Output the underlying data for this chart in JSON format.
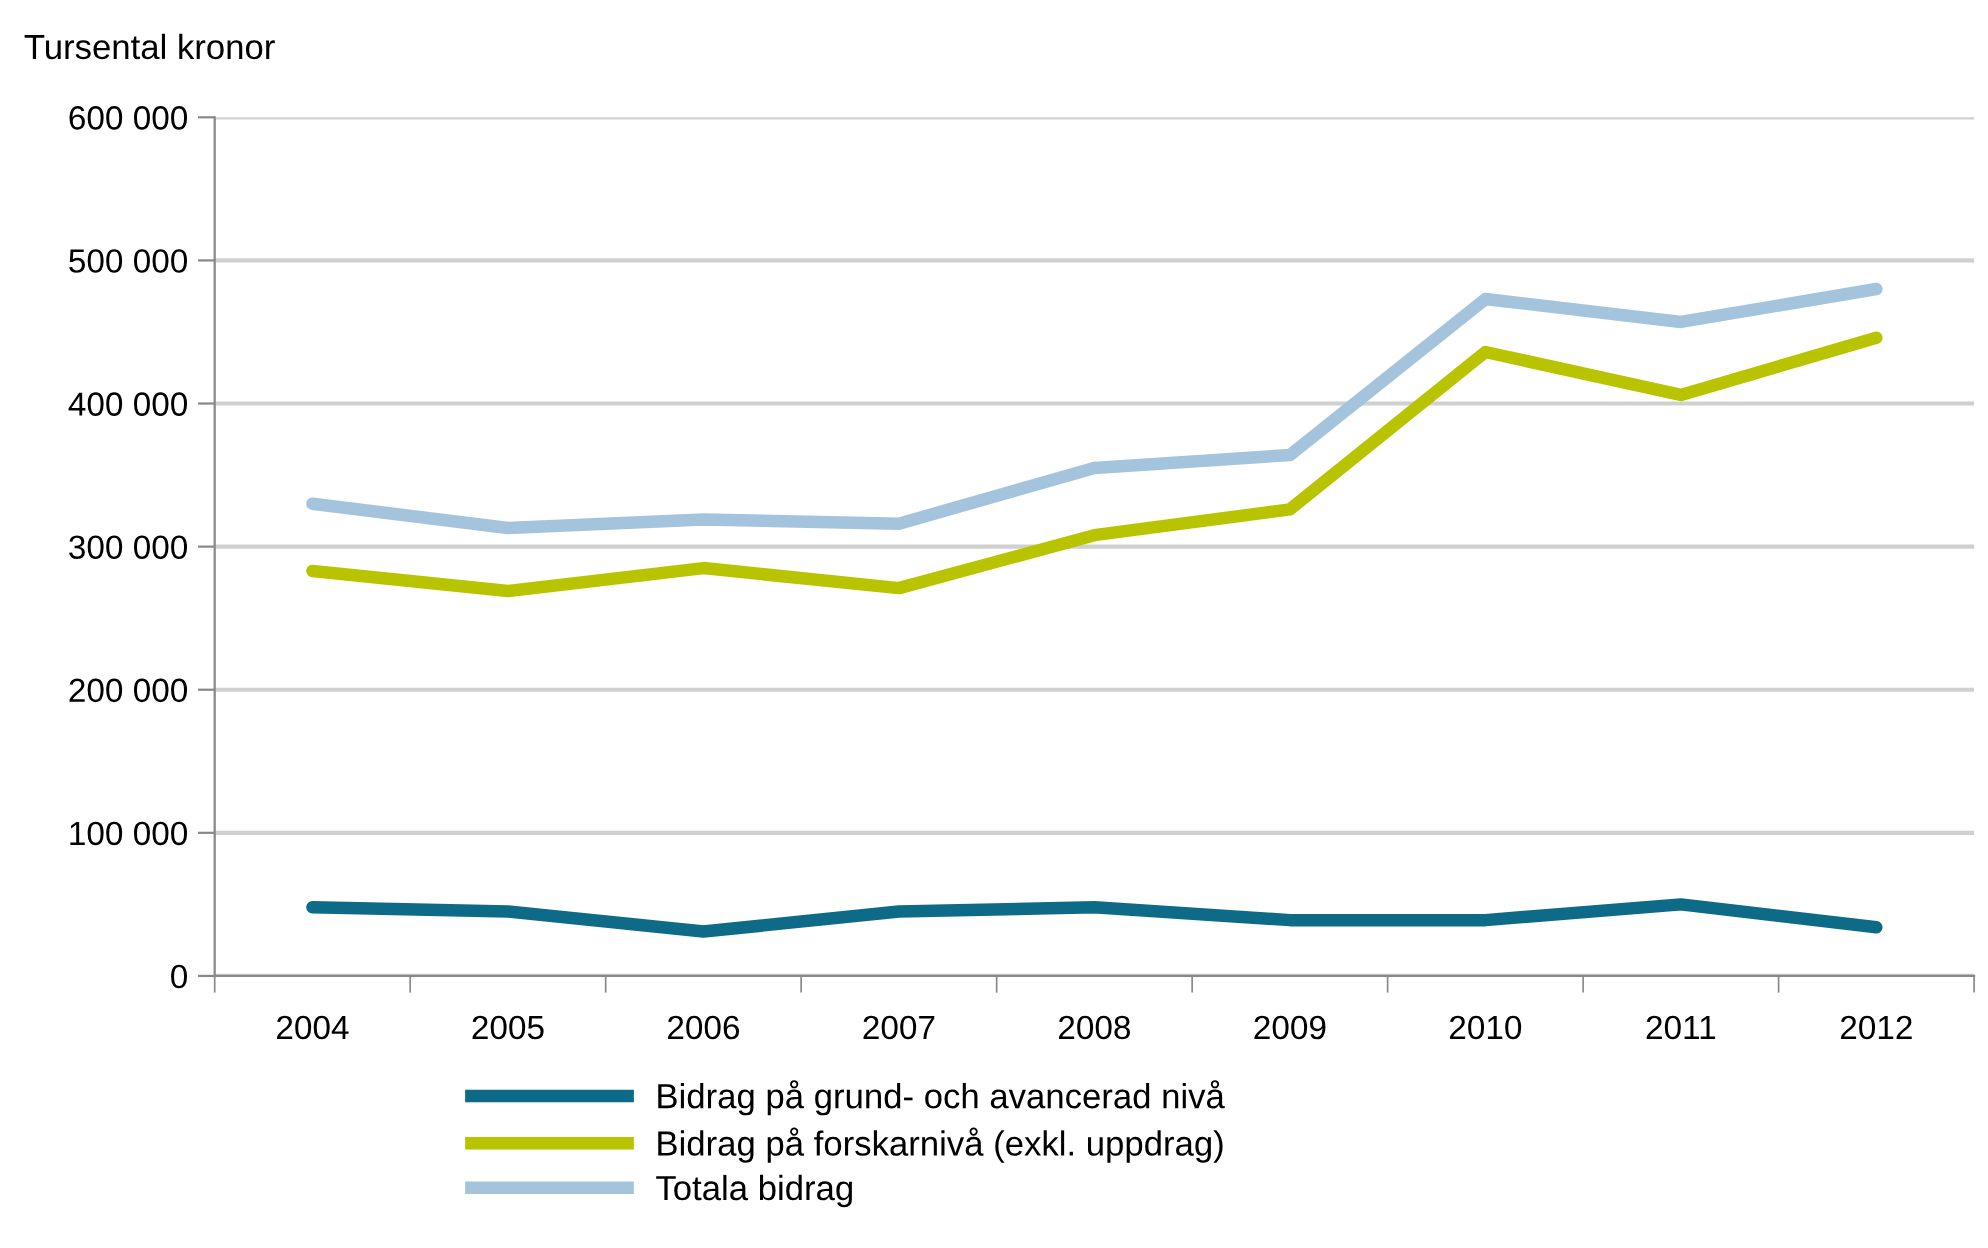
{
  "chart_data": {
    "type": "line",
    "ylabel": "Tursental kronor",
    "categories": [
      "2004",
      "2005",
      "2006",
      "2007",
      "2008",
      "2009",
      "2010",
      "2011",
      "2012"
    ],
    "series": [
      {
        "name": "Bidrag på grund- och avancerad nivå",
        "color": "#0e6b87",
        "values": [
          48000,
          45000,
          31000,
          45000,
          48000,
          39000,
          39000,
          50000,
          34000
        ]
      },
      {
        "name": "Bidrag på forskarnivå (exkl. uppdrag)",
        "color": "#b9c400",
        "values": [
          283000,
          269000,
          285000,
          271000,
          308000,
          326000,
          436000,
          406000,
          446000
        ]
      },
      {
        "name": "Totala bidrag",
        "color": "#a3c4dc",
        "values": [
          330000,
          313000,
          319000,
          316000,
          355000,
          364000,
          473000,
          457000,
          480000
        ]
      }
    ],
    "ylim": [
      0,
      600000
    ],
    "yticks": [
      {
        "value": 0,
        "label": "0"
      },
      {
        "value": 100000,
        "label": "100 000"
      },
      {
        "value": 200000,
        "label": "200 000"
      },
      {
        "value": 300000,
        "label": "300 000"
      },
      {
        "value": 400000,
        "label": "400 000"
      },
      {
        "value": 500000,
        "label": "500 000"
      },
      {
        "value": 600000,
        "label": "600 000"
      }
    ],
    "grid": "y",
    "legend": "bottom",
    "marker": "none",
    "line_style": "solid"
  }
}
